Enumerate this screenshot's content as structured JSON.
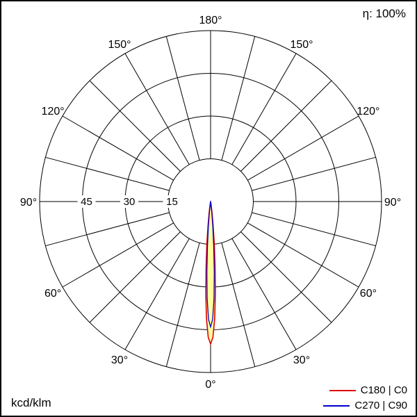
{
  "header": {
    "efficiency": "η: 100%"
  },
  "footer": {
    "unit": "kcd/klm"
  },
  "chart_data": {
    "type": "polar",
    "ylabel": "kcd/klm",
    "efficiency_percent": 100,
    "rings": [
      15,
      30,
      45
    ],
    "ring_max": 60,
    "spoke_step_deg": 15,
    "angle_label_step_deg": 30,
    "angle_labels": [
      {
        "deg": 0,
        "label": "0°"
      },
      {
        "deg": 30,
        "label": "30°"
      },
      {
        "deg": 60,
        "label": "60°"
      },
      {
        "deg": 90,
        "label": "90°"
      },
      {
        "deg": 120,
        "label": "120°"
      },
      {
        "deg": 150,
        "label": "150°"
      },
      {
        "deg": 180,
        "label": "180°"
      }
    ],
    "series": [
      {
        "name": "C180 | C0",
        "color": "#dd0000",
        "fill": "#ffffa0",
        "gamma_deg": [
          0,
          1,
          2,
          3,
          4,
          5,
          6,
          7,
          8,
          9,
          10,
          11,
          12
        ],
        "intensity_kcd_per_klm": [
          50,
          47.6,
          41.1,
          32.2,
          22.9,
          14.7,
          8.6,
          4.6,
          2.2,
          1.0,
          0.4,
          0.15,
          0.05
        ]
      },
      {
        "name": "C270 | C90",
        "color": "#0000cc",
        "fill": "none",
        "gamma_deg": [
          0,
          1,
          2,
          3,
          4,
          5,
          6,
          7,
          8,
          9,
          10
        ],
        "intensity_kcd_per_klm": [
          44,
          41.3,
          34.1,
          24.8,
          15.9,
          8.9,
          4.4,
          1.9,
          0.7,
          0.25,
          0.07
        ]
      }
    ]
  }
}
